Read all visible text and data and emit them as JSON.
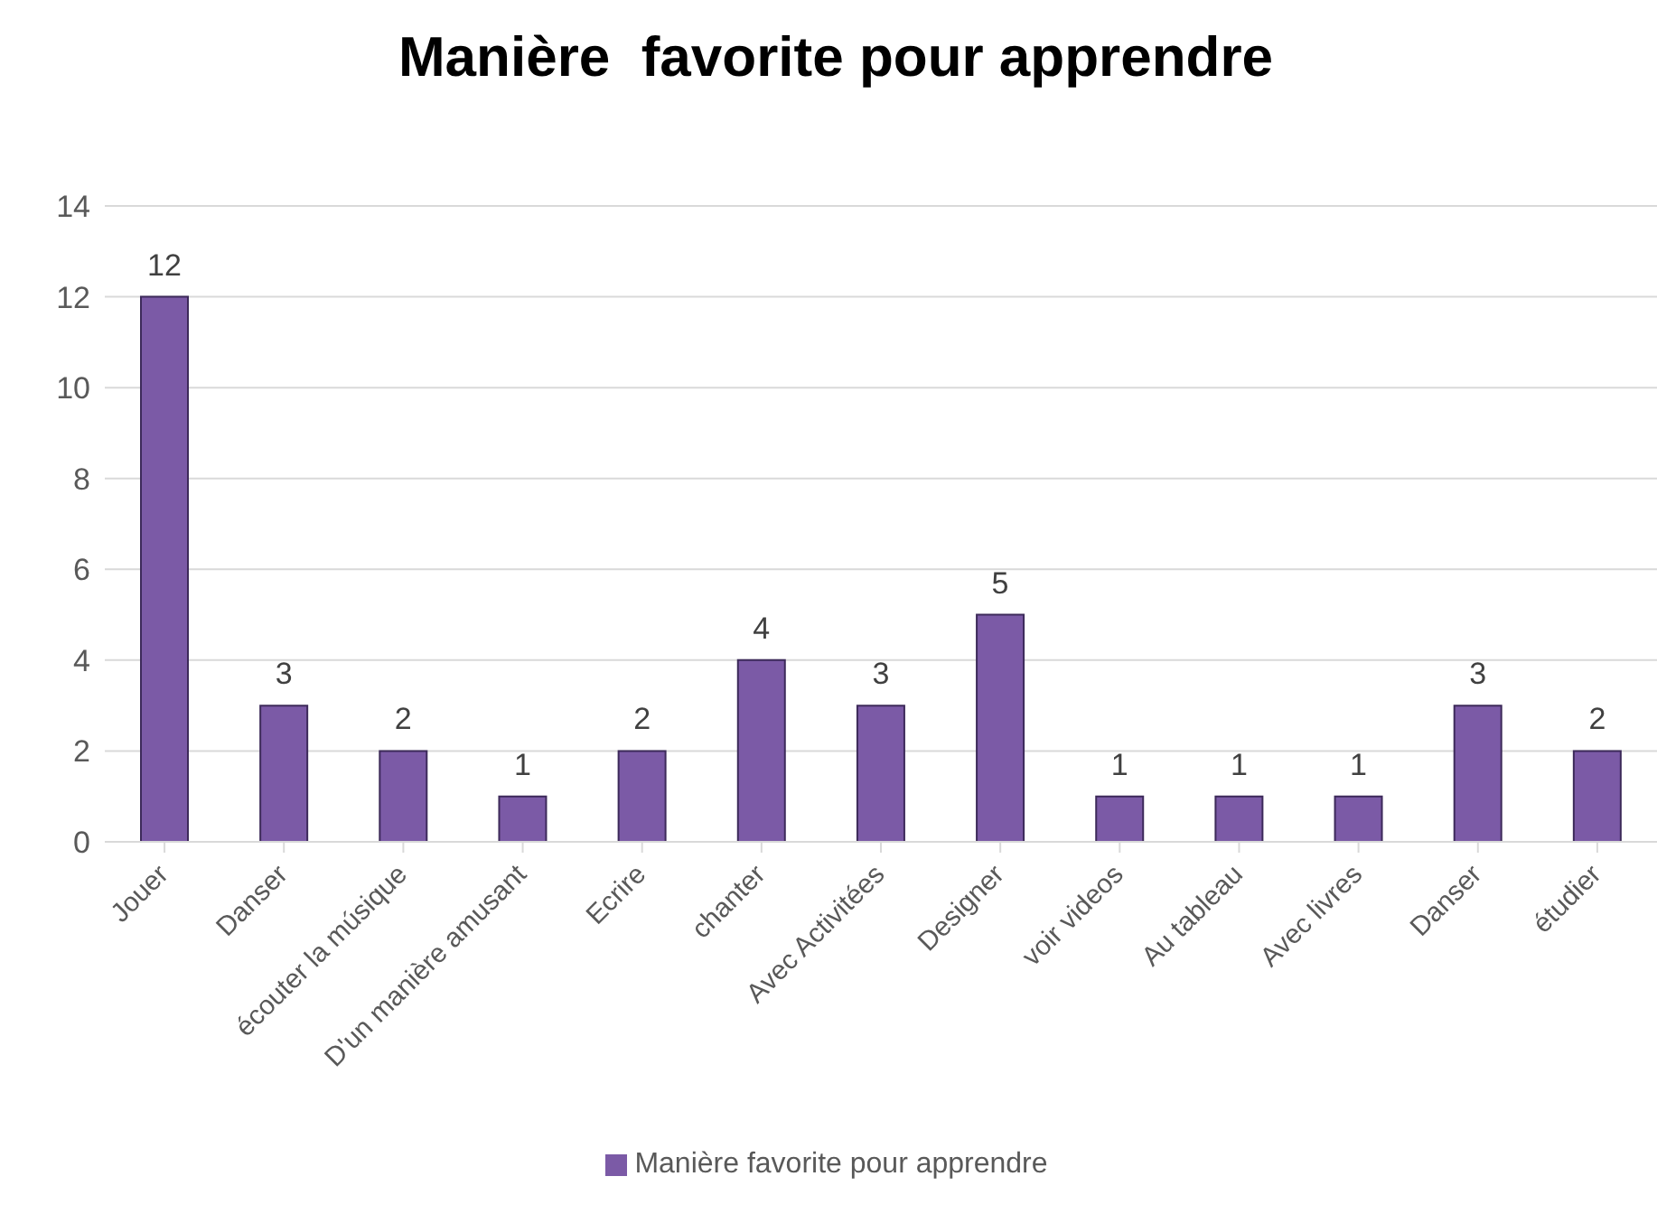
{
  "chart_data": {
    "type": "bar",
    "title": "Manière  favorite pour apprendre",
    "categories": [
      "Jouer",
      "Danser",
      "écouter la músique",
      "D'un manière amusant",
      "Ecrire",
      "chanter",
      "Avec Activitées",
      "Designer",
      "voir videos",
      "Au tableau",
      "Avec livres",
      "Danser",
      "étudier"
    ],
    "series": [
      {
        "name": "Manière  favorite pour apprendre",
        "color": "#7b5aa6",
        "values": [
          12,
          3,
          2,
          1,
          2,
          4,
          3,
          5,
          1,
          1,
          1,
          3,
          2
        ]
      }
    ],
    "ylim": [
      0,
      14
    ],
    "yticks": [
      0,
      2,
      4,
      6,
      8,
      10,
      12,
      14
    ],
    "grid": "y",
    "legend": "bottom",
    "data_labels": true
  }
}
